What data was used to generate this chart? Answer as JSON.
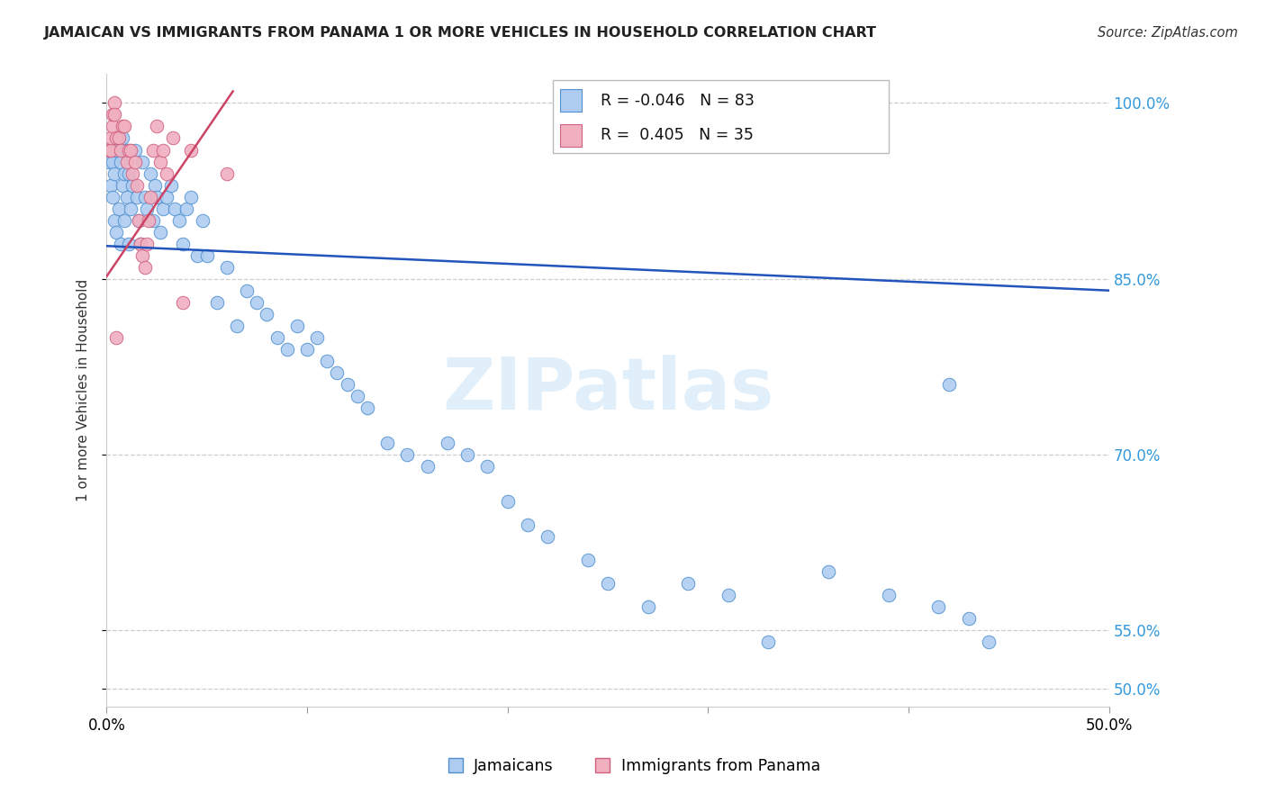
{
  "title": "JAMAICAN VS IMMIGRANTS FROM PANAMA 1 OR MORE VEHICLES IN HOUSEHOLD CORRELATION CHART",
  "source": "Source: ZipAtlas.com",
  "ylabel": "1 or more Vehicles in Household",
  "xlim": [
    0.0,
    0.5
  ],
  "ylim": [
    0.485,
    1.025
  ],
  "blue_color": "#aeccf0",
  "blue_edge_color": "#5090d0",
  "pink_color": "#f0b0c0",
  "pink_edge_color": "#d06080",
  "blue_line_color": "#2255bb",
  "pink_line_color": "#cc4466",
  "legend_blue": "Jamaicans",
  "legend_pink": "Immigrants from Panama",
  "r_blue": "-0.046",
  "n_blue": "83",
  "r_pink": "0.405",
  "n_pink": "35",
  "watermark": "ZIPatlas",
  "grid_color": "#cccccc",
  "yticks": [
    0.5,
    0.55,
    0.7,
    0.85,
    1.0
  ],
  "ytick_labels": [
    "50.0%",
    "55.0%",
    "70.0%",
    "85.0%",
    "100.0%"
  ],
  "blue_x": [
    0.001,
    0.002,
    0.002,
    0.003,
    0.003,
    0.004,
    0.004,
    0.005,
    0.005,
    0.006,
    0.006,
    0.007,
    0.007,
    0.008,
    0.008,
    0.009,
    0.009,
    0.01,
    0.01,
    0.011,
    0.011,
    0.012,
    0.013,
    0.014,
    0.015,
    0.016,
    0.017,
    0.018,
    0.019,
    0.02,
    0.022,
    0.023,
    0.024,
    0.025,
    0.027,
    0.028,
    0.03,
    0.032,
    0.034,
    0.036,
    0.038,
    0.04,
    0.042,
    0.045,
    0.048,
    0.05,
    0.055,
    0.06,
    0.065,
    0.07,
    0.075,
    0.08,
    0.085,
    0.09,
    0.095,
    0.1,
    0.105,
    0.11,
    0.115,
    0.12,
    0.125,
    0.13,
    0.14,
    0.15,
    0.16,
    0.17,
    0.18,
    0.19,
    0.2,
    0.21,
    0.22,
    0.24,
    0.25,
    0.27,
    0.29,
    0.31,
    0.33,
    0.36,
    0.39,
    0.415,
    0.42,
    0.43,
    0.44
  ],
  "blue_y": [
    0.95,
    0.93,
    0.96,
    0.92,
    0.95,
    0.9,
    0.94,
    0.89,
    0.96,
    0.91,
    0.97,
    0.95,
    0.88,
    0.93,
    0.97,
    0.94,
    0.9,
    0.96,
    0.92,
    0.88,
    0.94,
    0.91,
    0.93,
    0.96,
    0.92,
    0.9,
    0.88,
    0.95,
    0.92,
    0.91,
    0.94,
    0.9,
    0.93,
    0.92,
    0.89,
    0.91,
    0.92,
    0.93,
    0.91,
    0.9,
    0.88,
    0.91,
    0.92,
    0.87,
    0.9,
    0.87,
    0.83,
    0.86,
    0.81,
    0.84,
    0.83,
    0.82,
    0.8,
    0.79,
    0.81,
    0.79,
    0.8,
    0.78,
    0.77,
    0.76,
    0.75,
    0.74,
    0.71,
    0.7,
    0.69,
    0.71,
    0.7,
    0.69,
    0.66,
    0.64,
    0.63,
    0.61,
    0.59,
    0.57,
    0.59,
    0.58,
    0.54,
    0.6,
    0.58,
    0.57,
    0.76,
    0.56,
    0.54
  ],
  "pink_x": [
    0.001,
    0.002,
    0.002,
    0.003,
    0.003,
    0.004,
    0.004,
    0.005,
    0.005,
    0.006,
    0.007,
    0.008,
    0.009,
    0.01,
    0.011,
    0.012,
    0.013,
    0.014,
    0.015,
    0.016,
    0.017,
    0.018,
    0.019,
    0.02,
    0.021,
    0.022,
    0.023,
    0.025,
    0.027,
    0.028,
    0.03,
    0.033,
    0.038,
    0.042,
    0.06
  ],
  "pink_y": [
    0.96,
    0.96,
    0.97,
    0.98,
    0.99,
    1.0,
    0.99,
    0.97,
    0.8,
    0.97,
    0.96,
    0.98,
    0.98,
    0.95,
    0.96,
    0.96,
    0.94,
    0.95,
    0.93,
    0.9,
    0.88,
    0.87,
    0.86,
    0.88,
    0.9,
    0.92,
    0.96,
    0.98,
    0.95,
    0.96,
    0.94,
    0.97,
    0.83,
    0.96,
    0.94
  ],
  "blue_trend_x": [
    0.0,
    0.5
  ],
  "blue_trend_y": [
    0.878,
    0.84
  ],
  "pink_trend_x": [
    0.0,
    0.063
  ],
  "pink_trend_y": [
    0.852,
    1.01
  ]
}
